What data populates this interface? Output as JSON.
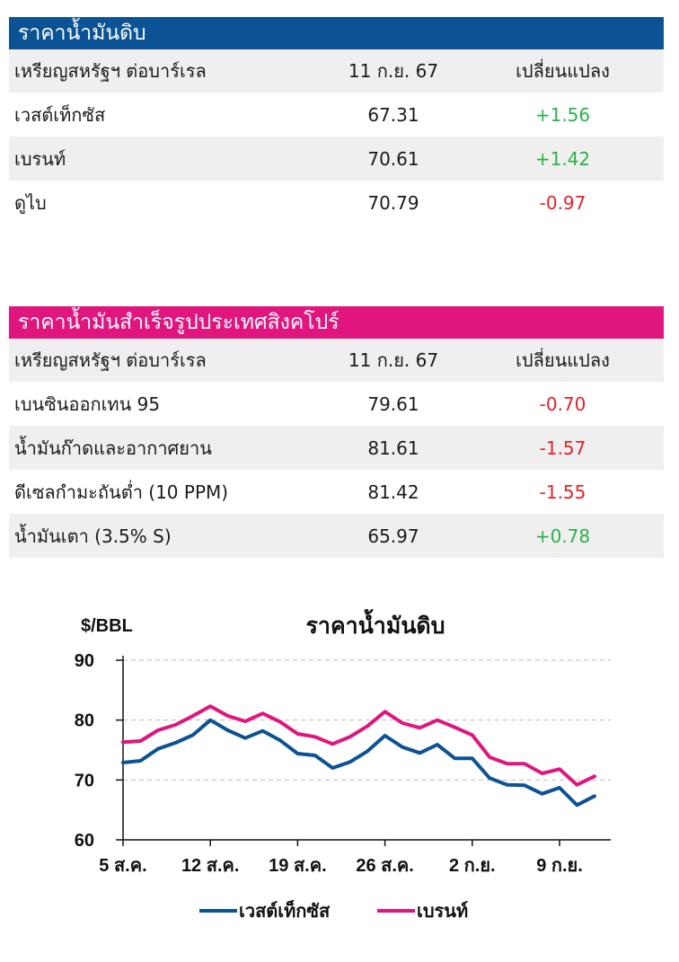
{
  "crude_table": {
    "title": "ราคาน้ำมันดิบ",
    "header_color": "#0b5394",
    "columns": [
      "เหรียญสหรัฐฯ ต่อบาร์เรล",
      "11 ก.ย. 67",
      "เปลี่ยนแปลง"
    ],
    "rows": [
      {
        "name": "เวสต์เท็กซัส",
        "price": "67.31",
        "change": "+1.56",
        "direction": "up"
      },
      {
        "name": "เบรนท์",
        "price": "70.61",
        "change": "+1.42",
        "direction": "up"
      },
      {
        "name": "ดูไบ",
        "price": "70.79",
        "change": "-0.97",
        "direction": "down"
      }
    ]
  },
  "singapore_table": {
    "title": "ราคาน้ำมันสำเร็จรูปประเทศสิงคโปร์",
    "header_color": "#e0157e",
    "columns": [
      "เหรียญสหรัฐฯ ต่อบาร์เรล",
      "11 ก.ย. 67",
      "เปลี่ยนแปลง"
    ],
    "rows": [
      {
        "name": "เบนซินออกเทน 95",
        "price": "79.61",
        "change": "-0.70",
        "direction": "down"
      },
      {
        "name": "น้ำมันก๊าดและอากาศยาน",
        "price": "81.61",
        "change": "-1.57",
        "direction": "down"
      },
      {
        "name": "ดีเซลกำมะถันต่ำ (10 PPM)",
        "price": "81.42",
        "change": "-1.55",
        "direction": "down"
      },
      {
        "name": "น้ำมันเตา (3.5% S)",
        "price": "65.97",
        "change": "+0.78",
        "direction": "up"
      }
    ]
  },
  "colors": {
    "positive": "#28b24a",
    "negative": "#e2232a",
    "wti": "#0b5394",
    "brent": "#e0157e"
  },
  "chart_data": {
    "type": "line",
    "title": "ราคาน้ำมันดิบ",
    "ylabel": "$/BBL",
    "ylim": [
      60,
      90
    ],
    "yticks": [
      60,
      70,
      80,
      90
    ],
    "xticks": [
      "5 ส.ค.",
      "12 ส.ค.",
      "19 ส.ค.",
      "26 ส.ค.",
      "2 ก.ย.",
      "9 ก.ย."
    ],
    "x": [
      "5 ส.ค.",
      "6 ส.ค.",
      "7 ส.ค.",
      "8 ส.ค.",
      "9 ส.ค.",
      "12 ส.ค.",
      "13 ส.ค.",
      "14 ส.ค.",
      "15 ส.ค.",
      "16 ส.ค.",
      "19 ส.ค.",
      "20 ส.ค.",
      "21 ส.ค.",
      "22 ส.ค.",
      "23 ส.ค.",
      "26 ส.ค.",
      "27 ส.ค.",
      "28 ส.ค.",
      "29 ส.ค.",
      "30 ส.ค.",
      "2 ก.ย.",
      "3 ก.ย.",
      "4 ก.ย.",
      "5 ก.ย.",
      "6 ก.ย.",
      "9 ก.ย.",
      "10 ก.ย.",
      "11 ก.ย."
    ],
    "series": [
      {
        "name": "เวสต์เท็กซัส",
        "color": "#0b5394",
        "values": [
          72.9,
          73.2,
          75.2,
          76.2,
          77.5,
          80.0,
          78.3,
          77.0,
          78.2,
          76.6,
          74.4,
          74.1,
          72.0,
          73.0,
          74.8,
          77.4,
          75.5,
          74.5,
          75.9,
          73.6,
          73.6,
          70.3,
          69.2,
          69.1,
          67.7,
          68.7,
          65.8,
          67.3
        ]
      },
      {
        "name": "เบรนท์",
        "color": "#e0157e",
        "values": [
          76.3,
          76.5,
          78.3,
          79.2,
          80.7,
          82.3,
          80.7,
          79.8,
          81.1,
          79.7,
          77.7,
          77.2,
          76.0,
          77.2,
          79.0,
          81.4,
          79.5,
          78.7,
          80.0,
          78.8,
          77.5,
          73.8,
          72.7,
          72.7,
          71.1,
          71.8,
          69.2,
          70.6
        ]
      }
    ],
    "legend": "bottom",
    "grid": "horizontal dashed"
  }
}
